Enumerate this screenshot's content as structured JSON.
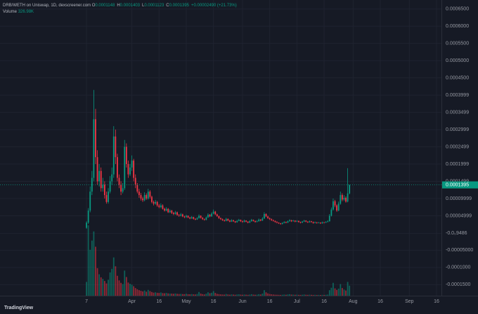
{
  "header": {
    "title": "DRB/WETH on Uniswap, 1D, dexscreener.com",
    "ohlc": [
      {
        "key": "O",
        "value": "0.0001148"
      },
      {
        "key": "H",
        "value": "0.0001403"
      },
      {
        "key": "L",
        "value": "0.0001123"
      },
      {
        "key": "C",
        "value": "0.0001395"
      }
    ],
    "change": "+0.00002490 (+21.73%)",
    "volume_key": "Volume",
    "volume_value": "326.98K"
  },
  "footer": {
    "brand": "TradingView"
  },
  "chart_data": {
    "type": "candlestick",
    "up_color": "#089981",
    "down_color": "#f23645",
    "grid": true,
    "open": [
      1.5e-05,
      3e-05,
      6.5e-05,
      0.00012,
      0.00016,
      0.00033,
      0.00022,
      0.00015,
      0.00018,
      0.00013,
      0.00014,
      0.00011,
      9e-05,
      0.00012,
      0.00015,
      0.00017,
      0.00028,
      0.00022,
      0.00016,
      0.00014,
      0.00012,
      0.00013,
      0.00025,
      0.0002,
      0.00017,
      0.00019,
      0.00021,
      0.00016,
      0.00014,
      0.00012,
      0.00011,
      0.0001,
      9.5e-05,
      0.00011,
      0.0001,
      0.00012,
      0.000105,
      9e-05,
      8.5e-05,
      9e-05,
      8e-05,
      7.5e-05,
      8e-05,
      7e-05,
      6.5e-05,
      7e-05,
      6e-05,
      6.5e-05,
      5.8e-05,
      5.5e-05,
      6e-05,
      5.2e-05,
      5e-05,
      5.4e-05,
      4.8e-05,
      4.6e-05,
      5e-05,
      4.5e-05,
      4.2e-05,
      4.6e-05,
      4.1e-05,
      3.9e-05,
      4.3e-05,
      5e-05,
      4.4e-05,
      4e-05,
      3.8e-05,
      4.5e-05,
      5.3e-05,
      4.8e-05,
      5.6e-05,
      6.2e-05,
      5.4e-05,
      4.9e-05,
      4.3e-05,
      4e-05,
      3.7e-05,
      3.5e-05,
      4.1e-05,
      3.6e-05,
      3.3e-05,
      3.7e-05,
      3.4e-05,
      3.1e-05,
      3.5e-05,
      3.8e-05,
      3.4e-05,
      3.2e-05,
      3.6e-05,
      3.3e-05,
      3e-05,
      3.4e-05,
      3.8e-05,
      3.5e-05,
      3.2e-05,
      3.4e-05,
      3.9e-05,
      3.6e-05,
      4.2e-05,
      5.5e-05,
      4.8e-05,
      4.3e-05,
      4e-05,
      3.7e-05,
      3.5e-05,
      3.2e-05,
      3e-05,
      2.8e-05,
      2.6e-05,
      2.9e-05,
      3.2e-05,
      3e-05,
      3.4e-05,
      3.7e-05,
      3.4e-05,
      3.6e-05,
      3.3e-05,
      3.5e-05,
      3.2e-05,
      3e-05,
      3.3e-05,
      3.6e-05,
      3.3e-05,
      3.1e-05,
      3.4e-05,
      3.2e-05,
      2.9e-05,
      3.1e-05,
      2.9e-05,
      3e-05,
      2.8e-05,
      3.1e-05,
      3e-05,
      3.2e-05,
      3.4e-05,
      5e-05,
      6.8e-05,
      9.2e-05,
      8e-05,
      6.5e-05,
      8.5e-05,
      0.00011,
      9.7e-05,
      0.000102,
      9.1e-05,
      0.0001148
    ],
    "high": [
      3.4e-05,
      7.2e-05,
      0.000135,
      0.00018,
      0.000415,
      0.00036,
      0.00024,
      0.0002,
      0.00019,
      0.00016,
      0.00015,
      0.00012,
      0.00013,
      0.000165,
      0.00019,
      0.00031,
      0.0003,
      0.00023,
      0.00017,
      0.00015,
      0.000145,
      0.00027,
      0.00026,
      0.00021,
      0.0002,
      0.000225,
      0.000215,
      0.00017,
      0.000145,
      0.000128,
      0.000116,
      0.000105,
      0.000118,
      0.000115,
      0.000128,
      0.000124,
      0.000108,
      9.4e-05,
      9.6e-05,
      9.3e-05,
      8.4e-05,
      8.6e-05,
      8.3e-05,
      7.3e-05,
      7.5e-05,
      7.2e-05,
      6.9e-05,
      6.7e-05,
      6.1e-05,
      6.4e-05,
      6.2e-05,
      5.5e-05,
      5.8e-05,
      5.6e-05,
      5e-05,
      5.3e-05,
      5.1e-05,
      4.7e-05,
      4.9e-05,
      4.7e-05,
      4.3e-05,
      4.6e-05,
      5.4e-05,
      5.1e-05,
      4.6e-05,
      4.2e-05,
      4.8e-05,
      5.7e-05,
      5.5e-05,
      6e-05,
      6.8e-05,
      6.4e-05,
      5.6e-05,
      5e-05,
      4.5e-05,
      4.2e-05,
      3.9e-05,
      4.4e-05,
      4.2e-05,
      3.8e-05,
      4e-05,
      3.8e-05,
      3.5e-05,
      3.8e-05,
      4.1e-05,
      3.9e-05,
      3.6e-05,
      3.9e-05,
      3.7e-05,
      3.4e-05,
      3.7e-05,
      4.1e-05,
      3.9e-05,
      3.6e-05,
      3.7e-05,
      4.2e-05,
      4e-05,
      4.6e-05,
      6e-05,
      5.7e-05,
      5e-05,
      4.5e-05,
      4.2e-05,
      3.9e-05,
      3.6e-05,
      3.4e-05,
      3.1e-05,
      2.9e-05,
      3.1e-05,
      3.4e-05,
      3.3e-05,
      3.6e-05,
      4e-05,
      3.8e-05,
      3.8e-05,
      3.7e-05,
      3.7e-05,
      3.6e-05,
      3.3e-05,
      3.5e-05,
      3.8e-05,
      3.7e-05,
      3.4e-05,
      3.6e-05,
      3.5e-05,
      3.3e-05,
      3.3e-05,
      3.2e-05,
      3.2e-05,
      3.1e-05,
      3.3e-05,
      3.2e-05,
      3.4e-05,
      3.7e-05,
      5.5e-05,
      7.4e-05,
      0.0001,
      9.6e-05,
      8.3e-05,
      9.1e-05,
      0.00012,
      0.000115,
      0.00011,
      0.000106,
      0.000188,
      0.0001403
    ],
    "low": [
      1.2e-05,
      2.6e-05,
      6e-05,
      0.00011,
      0.00015,
      0.0002,
      0.00014,
      0.000135,
      0.00012,
      0.00012,
      0.0001,
      8.5e-05,
      8.5e-05,
      0.000115,
      0.00014,
      0.00016,
      0.0002,
      0.00015,
      0.00013,
      0.00011,
      0.000115,
      0.000125,
      0.00019,
      0.00016,
      0.000165,
      0.00018,
      0.00015,
      0.00013,
      0.000115,
      0.000102,
      9.4e-05,
      9e-05,
      9.2e-05,
      9.6e-05,
      9.7e-05,
      0.0001,
      8.6e-05,
      8e-05,
      8.2e-05,
      7.6e-05,
      7.2e-05,
      7.2e-05,
      6.8e-05,
      6.2e-05,
      6.3e-05,
      5.8e-05,
      5.8e-05,
      5.5e-05,
      5.2e-05,
      5.3e-05,
      5e-05,
      4.7e-05,
      4.8e-05,
      4.6e-05,
      4.3e-05,
      4.4e-05,
      4.3e-05,
      4e-05,
      4.1e-05,
      3.9e-05,
      3.7e-05,
      3.8e-05,
      4.2e-05,
      4.2e-05,
      3.8e-05,
      3.6e-05,
      3.7e-05,
      4.4e-05,
      4.6e-05,
      4.7e-05,
      5.4e-05,
      5.2e-05,
      4.7e-05,
      4.1e-05,
      3.8e-05,
      3.5e-05,
      3.3e-05,
      3.4e-05,
      3.4e-05,
      3.1e-05,
      3.2e-05,
      3.2e-05,
      2.9e-05,
      3e-05,
      3.4e-05,
      3.2e-05,
      3e-05,
      3.1e-05,
      3.1e-05,
      2.8e-05,
      2.9e-05,
      3.3e-05,
      3.3e-05,
      3e-05,
      3.1e-05,
      3.3e-05,
      3.4e-05,
      3.5e-05,
      4.1e-05,
      4.6e-05,
      4.1e-05,
      3.8e-05,
      3.5e-05,
      3.3e-05,
      3e-05,
      2.8e-05,
      2.6e-05,
      2.4e-05,
      2.5e-05,
      2.8e-05,
      2.8e-05,
      2.9e-05,
      3.3e-05,
      3.2e-05,
      3.3e-05,
      3.1e-05,
      3.2e-05,
      3e-05,
      2.8e-05,
      2.9e-05,
      3.2e-05,
      3.1e-05,
      2.9e-05,
      3e-05,
      3e-05,
      2.7e-05,
      2.8e-05,
      2.7e-05,
      2.8e-05,
      2.6e-05,
      2.7e-05,
      2.8e-05,
      2.9e-05,
      3.1e-05,
      3.3e-05,
      4.8e-05,
      6.5e-05,
      7.5e-05,
      6.1e-05,
      6.3e-05,
      8.2e-05,
      9.2e-05,
      9.3e-05,
      8.8e-05,
      8.9e-05,
      0.0001123
    ],
    "close": [
      3e-05,
      6.5e-05,
      0.00012,
      0.00016,
      0.00033,
      0.00022,
      0.00015,
      0.00018,
      0.00013,
      0.00014,
      0.00011,
      9e-05,
      0.00012,
      0.00015,
      0.00017,
      0.00028,
      0.00022,
      0.00016,
      0.00014,
      0.00012,
      0.00013,
      0.00025,
      0.0002,
      0.00017,
      0.00019,
      0.00021,
      0.00016,
      0.00014,
      0.00012,
      0.00011,
      0.0001,
      9.5e-05,
      0.00011,
      0.0001,
      0.00012,
      0.000105,
      9e-05,
      8.5e-05,
      9e-05,
      8e-05,
      7.5e-05,
      8e-05,
      7e-05,
      6.5e-05,
      7e-05,
      6e-05,
      6.5e-05,
      5.8e-05,
      5.5e-05,
      6e-05,
      5.2e-05,
      5e-05,
      5.4e-05,
      4.8e-05,
      4.6e-05,
      5e-05,
      4.5e-05,
      4.2e-05,
      4.6e-05,
      4.1e-05,
      3.9e-05,
      4.3e-05,
      5e-05,
      4.4e-05,
      4e-05,
      3.8e-05,
      4.5e-05,
      5.3e-05,
      4.8e-05,
      5.6e-05,
      6.2e-05,
      5.4e-05,
      4.9e-05,
      4.3e-05,
      4e-05,
      3.7e-05,
      3.5e-05,
      4.1e-05,
      3.6e-05,
      3.3e-05,
      3.7e-05,
      3.4e-05,
      3.1e-05,
      3.5e-05,
      3.8e-05,
      3.4e-05,
      3.2e-05,
      3.6e-05,
      3.3e-05,
      3e-05,
      3.4e-05,
      3.8e-05,
      3.5e-05,
      3.2e-05,
      3.4e-05,
      3.9e-05,
      3.6e-05,
      4.2e-05,
      5.5e-05,
      4.8e-05,
      4.3e-05,
      4e-05,
      3.7e-05,
      3.5e-05,
      3.2e-05,
      3e-05,
      2.8e-05,
      2.6e-05,
      2.9e-05,
      3.2e-05,
      3e-05,
      3.4e-05,
      3.7e-05,
      3.4e-05,
      3.6e-05,
      3.3e-05,
      3.5e-05,
      3.2e-05,
      3e-05,
      3.3e-05,
      3.6e-05,
      3.3e-05,
      3.1e-05,
      3.4e-05,
      3.2e-05,
      2.9e-05,
      3.1e-05,
      2.9e-05,
      3e-05,
      2.8e-05,
      3.1e-05,
      3e-05,
      3.2e-05,
      3.4e-05,
      5e-05,
      6.8e-05,
      9.2e-05,
      8e-05,
      6.5e-05,
      8.5e-05,
      0.00011,
      9.7e-05,
      0.000102,
      9.1e-05,
      0.0001148,
      0.0001395
    ],
    "volume": [
      450000,
      2300000,
      1500000,
      1800000,
      2100000,
      1600000,
      900000,
      700000,
      600000,
      550000,
      480000,
      400000,
      520000,
      760000,
      880000,
      1250000,
      960000,
      650000,
      500000,
      420000,
      380000,
      820000,
      610000,
      430000,
      390000,
      360000,
      310000,
      250000,
      210000,
      180000,
      160000,
      140000,
      170000,
      130000,
      190000,
      150000,
      120000,
      100000,
      110000,
      95000,
      90000,
      105000,
      85000,
      80000,
      90000,
      75000,
      70000,
      68000,
      62000,
      72000,
      60000,
      55000,
      58000,
      52000,
      50000,
      62000,
      48000,
      45000,
      52000,
      44000,
      40000,
      55000,
      120000,
      70000,
      50000,
      42000,
      65000,
      110000,
      80000,
      95000,
      150000,
      90000,
      60000,
      50000,
      42000,
      38000,
      35000,
      55000,
      40000,
      33000,
      42000,
      36000,
      30000,
      40000,
      45000,
      35000,
      30000,
      38000,
      32000,
      28000,
      36000,
      48000,
      35000,
      30000,
      32000,
      50000,
      40000,
      70000,
      180000,
      110000,
      75000,
      55000,
      45000,
      38000,
      32000,
      30000,
      28000,
      26000,
      30000,
      36000,
      30000,
      40000,
      48000,
      36000,
      34000,
      30000,
      32000,
      28000,
      26000,
      30000,
      38000,
      30000,
      27000,
      32000,
      28000,
      25000,
      27000,
      24000,
      25000,
      23000,
      27000,
      25000,
      28000,
      35000,
      180000,
      260000,
      420000,
      240000,
      190000,
      230000,
      380000,
      250000,
      200000,
      170000,
      450000,
      326980
    ],
    "last_price_label": "0.0001395",
    "xlim": [
      -47.7,
      195.7
    ],
    "xticks": [
      {
        "value": 0,
        "label": "7"
      },
      {
        "value": 25,
        "label": "Apr"
      },
      {
        "value": 40,
        "label": "16"
      },
      {
        "value": 55,
        "label": "May"
      },
      {
        "value": 70,
        "label": "16"
      },
      {
        "value": 86,
        "label": "Jun"
      },
      {
        "value": 101,
        "label": "16"
      },
      {
        "value": 116,
        "label": "Jul"
      },
      {
        "value": 131,
        "label": "16"
      },
      {
        "value": 147,
        "label": "Aug"
      },
      {
        "value": 162,
        "label": "16"
      },
      {
        "value": 178,
        "label": "Sep"
      },
      {
        "value": 193,
        "label": "16"
      }
    ],
    "ylim": [
      -0.000182,
      0.000676
    ],
    "yticks": [
      {
        "value": 0.00065,
        "label": "0.0006500"
      },
      {
        "value": 0.0006,
        "label": "0.0006000"
      },
      {
        "value": 0.00055,
        "label": "0.0005500"
      },
      {
        "value": 0.0005,
        "label": "0.0005000"
      },
      {
        "value": 0.00045,
        "label": "0.0004500"
      },
      {
        "value": 0.0003999,
        "label": "0.0003999"
      },
      {
        "value": 0.0003499,
        "label": "0.0003499"
      },
      {
        "value": 0.0002999,
        "label": "0.0002999"
      },
      {
        "value": 0.0002499,
        "label": "0.0002499"
      },
      {
        "value": 0.0001999,
        "label": "0.0001999"
      },
      {
        "value": 0.0001499,
        "label": "0.0001499"
      },
      {
        "value": 9.999e-05,
        "label": "0.00009999"
      },
      {
        "value": 4.999e-05,
        "label": "0.00004999"
      },
      {
        "value": -9.486e-07,
        "label": "-0.0₀9486"
      },
      {
        "value": -5e-05,
        "label": "-0.00005000"
      },
      {
        "value": -0.0001,
        "label": "-0.0001000"
      },
      {
        "value": -0.00015,
        "label": "-0.0001500"
      }
    ]
  }
}
